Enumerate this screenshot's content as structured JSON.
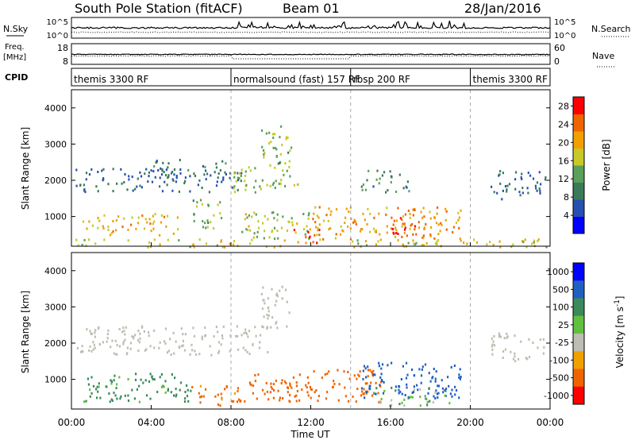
{
  "header": {
    "station": "South Pole Station (fitACF)",
    "beam": "Beam 01",
    "date": "28/Jan/2016"
  },
  "nsky_panel": {
    "left_label": "N.Sky",
    "right_label": "N.Search",
    "left_ticks": [
      "10^5",
      "10^0"
    ],
    "right_ticks": [
      "10^5",
      "10^0"
    ]
  },
  "freq_panel": {
    "left_label_1": "Freq.",
    "left_label_2": "[MHz]",
    "right_label": "Nave",
    "left_ticks": [
      "18",
      "8"
    ],
    "right_ticks": [
      "60",
      "0"
    ]
  },
  "cpid": {
    "label": "CPID",
    "segments": [
      {
        "name": "themis 3300 RF",
        "start_hour": 0,
        "end_hour": 8
      },
      {
        "name": "normalsound (fast) 157 RF",
        "start_hour": 8,
        "end_hour": 14
      },
      {
        "name": "rbsp 200 RF",
        "start_hour": 14,
        "end_hour": 20
      },
      {
        "name": "themis 3300 RF",
        "start_hour": 20,
        "end_hour": 24
      }
    ]
  },
  "chart_data": [
    {
      "type": "heatmap",
      "name": "Power",
      "ylabel": "Slant Range [km]",
      "ylim": [
        180,
        4500
      ],
      "yticks": [
        1000,
        2000,
        3000,
        4000
      ],
      "xlim": [
        0,
        24
      ],
      "colorbar": {
        "label": "Power [dB]",
        "ticks": [
          4,
          8,
          12,
          16,
          20,
          24,
          28
        ],
        "range": [
          0,
          30
        ]
      },
      "regions": [
        {
          "t": [
            0.2,
            8.5
          ],
          "r": [
            1700,
            2350
          ],
          "v": 6
        },
        {
          "t": [
            4.0,
            8.0
          ],
          "r": [
            2100,
            2600
          ],
          "v": 8
        },
        {
          "t": [
            0.5,
            5.5
          ],
          "r": [
            500,
            1100
          ],
          "v": 20
        },
        {
          "t": [
            6.0,
            7.5
          ],
          "r": [
            700,
            1600
          ],
          "v": 14
        },
        {
          "t": [
            8.0,
            11.5
          ],
          "r": [
            1700,
            2400
          ],
          "v": 15
        },
        {
          "t": [
            9.5,
            11.0
          ],
          "r": [
            2400,
            3600
          ],
          "v": 14
        },
        {
          "t": [
            8.5,
            12.0
          ],
          "r": [
            400,
            1200
          ],
          "v": 16
        },
        {
          "t": [
            11.0,
            12.5
          ],
          "r": [
            300,
            700
          ],
          "v": 26
        },
        {
          "t": [
            12.0,
            19.5
          ],
          "r": [
            400,
            1300
          ],
          "v": 22
        },
        {
          "t": [
            16.0,
            18.0
          ],
          "r": [
            500,
            1100
          ],
          "v": 27
        },
        {
          "t": [
            14.5,
            17.0
          ],
          "r": [
            1700,
            2300
          ],
          "v": 10
        },
        {
          "t": [
            21.0,
            23.8
          ],
          "r": [
            1500,
            2300
          ],
          "v": 6
        },
        {
          "t": [
            0,
            24
          ],
          "r": [
            180,
            400
          ],
          "v": 18
        }
      ]
    },
    {
      "type": "heatmap",
      "name": "Velocity",
      "ylabel": "Slant Range [km]",
      "xlabel": "Time UT",
      "ylim": [
        180,
        4500
      ],
      "yticks": [
        1000,
        2000,
        3000,
        4000
      ],
      "xlim": [
        0,
        24
      ],
      "xticks": [
        "00:00",
        "04:00",
        "08:00",
        "12:00",
        "16:00",
        "20:00",
        "00:00"
      ],
      "colorbar": {
        "label": "Velocity [m s^-1]",
        "ticks": [
          "1000",
          "500",
          "100",
          "25",
          "-25",
          "-100",
          "-500",
          "-1000"
        ]
      },
      "ground_scatter_color": "#bdbdb3",
      "regions": [
        {
          "t": [
            0.2,
            10.0
          ],
          "r": [
            1700,
            2500
          ],
          "v": "gs"
        },
        {
          "t": [
            9.5,
            11.0
          ],
          "r": [
            2400,
            3600
          ],
          "v": "gs"
        },
        {
          "t": [
            0.5,
            6.0
          ],
          "r": [
            400,
            1200
          ],
          "v": 150
        },
        {
          "t": [
            6.0,
            8.5
          ],
          "r": [
            300,
            900
          ],
          "v": -150
        },
        {
          "t": [
            8.5,
            12.0
          ],
          "r": [
            400,
            1200
          ],
          "v": -300
        },
        {
          "t": [
            12.0,
            15.5
          ],
          "r": [
            400,
            1300
          ],
          "v": -200
        },
        {
          "t": [
            14.5,
            19.5
          ],
          "r": [
            500,
            1500
          ],
          "v": 700
        },
        {
          "t": [
            15.0,
            19.0
          ],
          "r": [
            300,
            800
          ],
          "v": 60
        },
        {
          "t": [
            21.0,
            23.8
          ],
          "r": [
            1500,
            2300
          ],
          "v": "gs"
        }
      ]
    }
  ],
  "colors": {
    "power_scale": [
      "#0000ff",
      "#2850b0",
      "#3a7a58",
      "#5aa05a",
      "#c8c828",
      "#f0a000",
      "#f06400",
      "#ff0000"
    ],
    "velocity_scale": [
      "#0000ff",
      "#2060c0",
      "#3a8a5a",
      "#60c040",
      "#bdbdb3",
      "#f0a000",
      "#f06400",
      "#ff0000"
    ]
  }
}
